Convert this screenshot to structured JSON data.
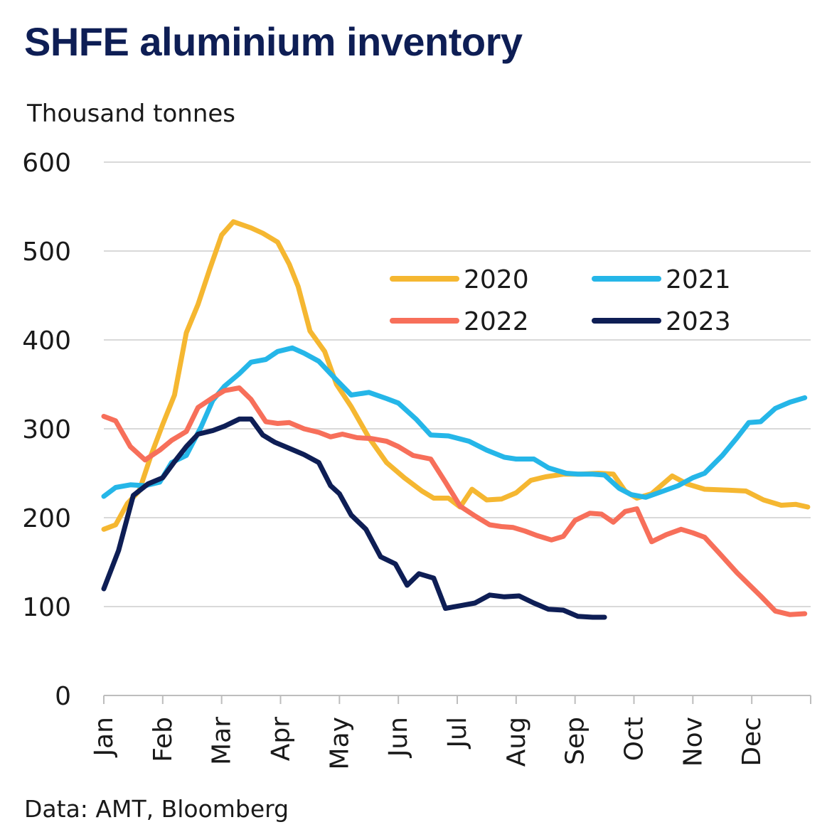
{
  "title": "SHFE aluminium inventory",
  "unit_label": "Thousand tonnes",
  "source": "Data: AMT, Bloomberg",
  "chart_data": {
    "type": "line",
    "title": "SHFE aluminium inventory",
    "ylabel": "Thousand tonnes",
    "xlabel": "",
    "ylim": [
      0,
      600
    ],
    "yticks": [
      0,
      100,
      200,
      300,
      400,
      500,
      600
    ],
    "xlim": [
      0,
      12
    ],
    "xticks": [
      "Jan",
      "Feb",
      "Mar",
      "Apr",
      "May",
      "Jun",
      "Jul",
      "Aug",
      "Sep",
      "Oct",
      "Nov",
      "Dec"
    ],
    "x_unit": "months since start of year",
    "grid": "horizontal",
    "legend": "top-right",
    "series": [
      {
        "name": "2020",
        "color": "#f5b731",
        "x": [
          0,
          0.2,
          0.4,
          0.6,
          0.8,
          1,
          1.2,
          1.4,
          1.6,
          1.8,
          2,
          2.2,
          2.5,
          2.7,
          2.95,
          3.15,
          3.3,
          3.5,
          3.75,
          3.95,
          4.2,
          4.5,
          4.8,
          5.1,
          5.4,
          5.6,
          5.85,
          6.05,
          6.25,
          6.5,
          6.75,
          7,
          7.25,
          7.5,
          7.8,
          8.1,
          8.4,
          8.65,
          8.85,
          9.05,
          9.3,
          9.65,
          9.9,
          10.2,
          10.6,
          10.9,
          11.2,
          11.5,
          11.75,
          11.95
        ],
        "values": [
          187,
          192,
          216,
          230,
          270,
          305,
          338,
          408,
          440,
          480,
          518,
          533,
          526,
          520,
          510,
          485,
          460,
          410,
          387,
          350,
          325,
          290,
          262,
          245,
          230,
          222,
          222,
          212,
          232,
          220,
          221,
          228,
          242,
          246,
          249,
          249,
          250,
          249,
          230,
          222,
          227,
          247,
          238,
          232,
          231,
          230,
          220,
          214,
          215,
          212
        ]
      },
      {
        "name": "2021",
        "color": "#25b6e8",
        "x": [
          0,
          0.2,
          0.45,
          0.7,
          0.95,
          1.15,
          1.4,
          1.65,
          1.85,
          2.05,
          2.3,
          2.5,
          2.75,
          2.95,
          3.2,
          3.4,
          3.65,
          3.95,
          4.2,
          4.5,
          4.8,
          5.0,
          5.3,
          5.55,
          5.85,
          6.2,
          6.5,
          6.8,
          7.0,
          7.3,
          7.55,
          7.85,
          8.05,
          8.3,
          8.5,
          8.75,
          8.95,
          9.2,
          9.5,
          9.75,
          10,
          10.2,
          10.5,
          10.75,
          10.95,
          11.15,
          11.4,
          11.65,
          11.9
        ],
        "values": [
          224,
          234,
          237,
          236,
          240,
          262,
          270,
          302,
          332,
          348,
          362,
          375,
          378,
          387,
          391,
          385,
          376,
          355,
          338,
          341,
          334,
          329,
          311,
          293,
          292,
          286,
          276,
          268,
          266,
          266,
          256,
          250,
          249,
          249,
          248,
          233,
          226,
          223,
          230,
          236,
          245,
          250,
          270,
          290,
          307,
          308,
          323,
          330,
          335
        ]
      },
      {
        "name": "2022",
        "color": "#f76f5a",
        "x": [
          0,
          0.2,
          0.45,
          0.7,
          0.95,
          1.15,
          1.4,
          1.6,
          1.85,
          2.05,
          2.3,
          2.5,
          2.75,
          2.95,
          3.15,
          3.4,
          3.65,
          3.85,
          4.05,
          4.3,
          4.55,
          4.8,
          5.0,
          5.25,
          5.55,
          5.8,
          6.05,
          6.3,
          6.55,
          6.75,
          6.95,
          7.15,
          7.35,
          7.6,
          7.8,
          8.0,
          8.25,
          8.45,
          8.65,
          8.85,
          9.05,
          9.3,
          9.55,
          9.8,
          10.0,
          10.2,
          10.45,
          10.75,
          10.95,
          11.15,
          11.4,
          11.65,
          11.9
        ],
        "values": [
          314,
          309,
          280,
          265,
          276,
          287,
          297,
          324,
          335,
          343,
          346,
          333,
          308,
          306,
          307,
          300,
          296,
          291,
          294,
          290,
          289,
          286,
          280,
          270,
          266,
          240,
          213,
          202,
          192,
          190,
          189,
          185,
          180,
          175,
          179,
          197,
          205,
          204,
          195,
          207,
          210,
          173,
          181,
          187,
          183,
          178,
          160,
          138,
          125,
          112,
          95,
          91,
          92
        ]
      },
      {
        "name": "2023",
        "color": "#0e1e55",
        "x": [
          0,
          0.25,
          0.5,
          0.75,
          1.0,
          1.2,
          1.4,
          1.6,
          1.85,
          2.05,
          2.3,
          2.5,
          2.7,
          2.9,
          3.15,
          3.4,
          3.65,
          3.85,
          4.0,
          4.2,
          4.45,
          4.7,
          4.95,
          5.15,
          5.35,
          5.6,
          5.8,
          6.05,
          6.3,
          6.55,
          6.8,
          7.05,
          7.3,
          7.55,
          7.8,
          8.05,
          8.3,
          8.5
        ],
        "values": [
          120,
          163,
          225,
          238,
          245,
          263,
          280,
          294,
          298,
          303,
          311,
          311,
          293,
          285,
          278,
          271,
          262,
          236,
          227,
          203,
          187,
          156,
          148,
          124,
          137,
          132,
          98,
          101,
          104,
          113,
          111,
          112,
          104,
          97,
          96,
          89,
          88,
          88
        ]
      }
    ]
  }
}
